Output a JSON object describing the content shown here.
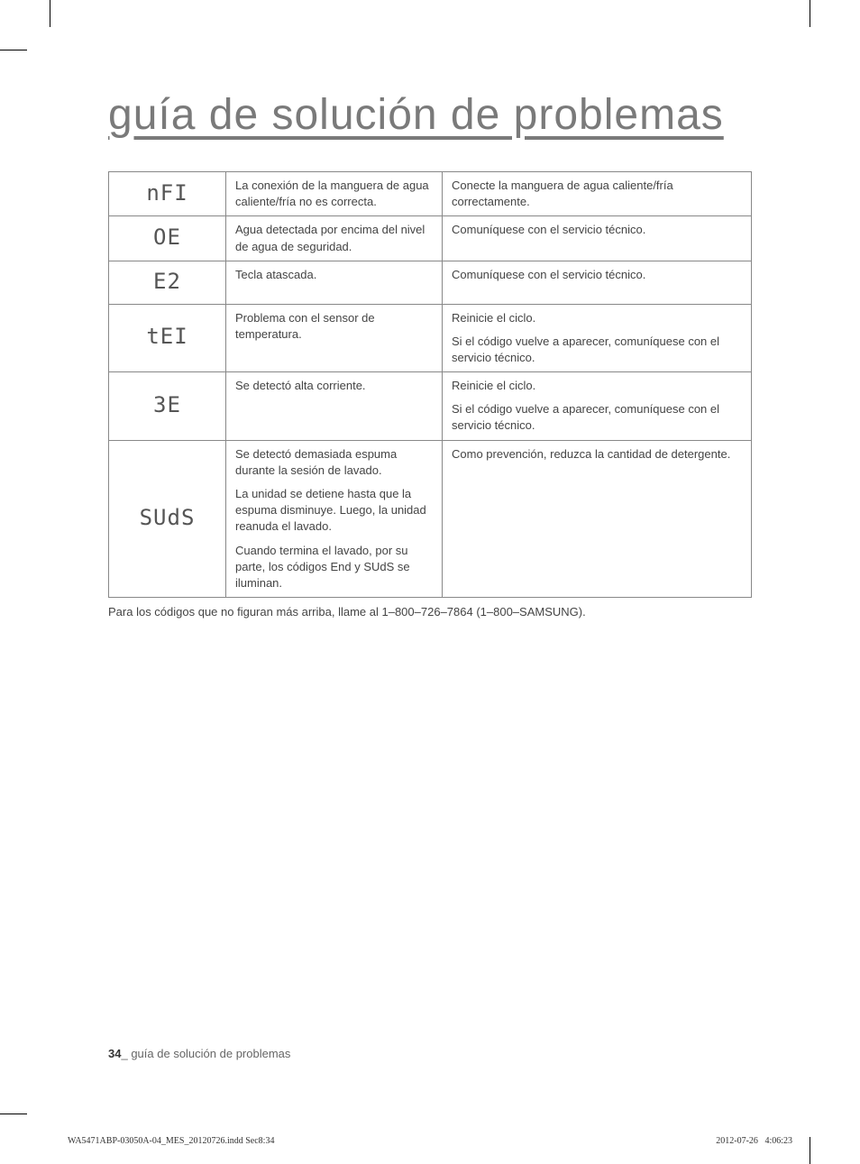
{
  "title": "guía de solución de problemas",
  "table": {
    "rows": [
      {
        "code_display": "nFI",
        "problem": "La conexión de la manguera de agua caliente/fría no es correcta.",
        "solution": "Conecte la manguera de agua caliente/fría correctamente."
      },
      {
        "code_display": "OE",
        "problem": "Agua detectada por encima del nivel de agua de seguridad.",
        "solution": "Comuníquese con el servicio técnico."
      },
      {
        "code_display": "E2",
        "problem": "Tecla atascada.",
        "solution": "Comuníquese con el servicio técnico."
      },
      {
        "code_display": "tEI",
        "problem": "Problema con el sensor de temperatura.",
        "solution_p1": "Reinicie el ciclo.",
        "solution_p2": "Si el código vuelve a aparecer, comuníquese con el servicio técnico."
      },
      {
        "code_display": "3E",
        "problem": "Se detectó alta corriente.",
        "solution_p1": "Reinicie el ciclo.",
        "solution_p2": "Si el código vuelve a aparecer, comuníquese con el servicio técnico."
      },
      {
        "code_display": "SUdS",
        "problem_p1": "Se detectó demasiada espuma durante la sesión de lavado.",
        "problem_p2": "La unidad se detiene hasta que la espuma disminuye. Luego, la unidad reanuda el lavado.",
        "problem_p3": "Cuando termina el lavado, por su parte, los códigos End y SUdS se iluminan.",
        "solution": "Como prevención, reduzca la cantidad de detergente."
      }
    ]
  },
  "footer_note": "Para los códigos que no figuran más arriba, llame al 1–800–726–7864 (1–800–SAMSUNG).",
  "page_footer": {
    "page_num": "34",
    "separator": "_",
    "section": "guía de solución de problemas"
  },
  "print_footer": {
    "filename": "WA5471ABP-03050A-04_MES_20120726.indd   Sec8:34",
    "date": "2012-07-26",
    "time": "4:06:23"
  },
  "colors": {
    "title": "#7a7a7a",
    "text": "#444444",
    "border": "#888888",
    "background": "#ffffff"
  },
  "seg7_glyphs": {
    "nFI": "nFI",
    "OE": "OE",
    "E2": "E2",
    "tEI": "tEI",
    "3E": "3E",
    "SUdS": "SUdS"
  }
}
